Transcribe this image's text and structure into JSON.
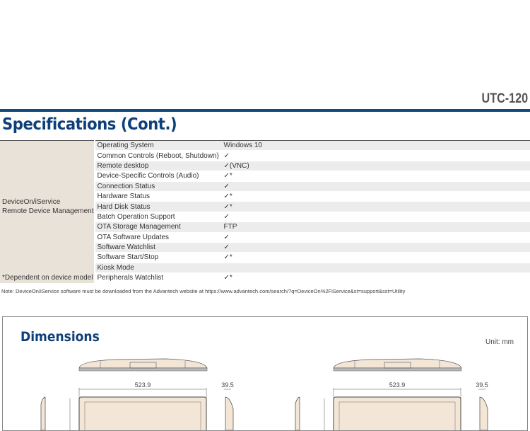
{
  "header": {
    "model": "UTC-120"
  },
  "specs": {
    "title": "Specifications (Cont.)",
    "group_label": [
      "DeviceOn/iService",
      "Remote Device Management"
    ],
    "footnote": "*Dependent on device model",
    "rows": [
      {
        "k": "Operating System",
        "v": "Windows 10"
      },
      {
        "k": "Common Controls (Reboot, Shutdown)",
        "v": "✓"
      },
      {
        "k": "Remote desktop",
        "v": "✓(VNC)"
      },
      {
        "k": "Device-Specific Controls (Audio)",
        "v": "✓*"
      },
      {
        "k": "Connection Status",
        "v": "✓"
      },
      {
        "k": "Hardware Status",
        "v": "✓*"
      },
      {
        "k": "Hard Disk Status",
        "v": "✓*"
      },
      {
        "k": "Batch Operation Support",
        "v": "✓"
      },
      {
        "k": "OTA Storage Management",
        "v": "FTP"
      },
      {
        "k": "OTA Software Updates",
        "v": "✓"
      },
      {
        "k": "Software Watchlist",
        "v": "✓"
      },
      {
        "k": "Software Start/Stop",
        "v": "✓*"
      },
      {
        "k": "Kiosk Mode",
        "v": ""
      },
      {
        "k": "Peripherals Watchlist",
        "v": "✓*"
      }
    ],
    "note": "Note: DeviceOn/iService software must be downloaded from the Advantech website at https://www.advantech.com/search/?q=DeviceOn%2FiService&st=support&sst=Utility"
  },
  "dimensions": {
    "title": "Dimensions",
    "unit": "Unit: mm",
    "width_label": "523.9",
    "depth_label": "39.5"
  }
}
